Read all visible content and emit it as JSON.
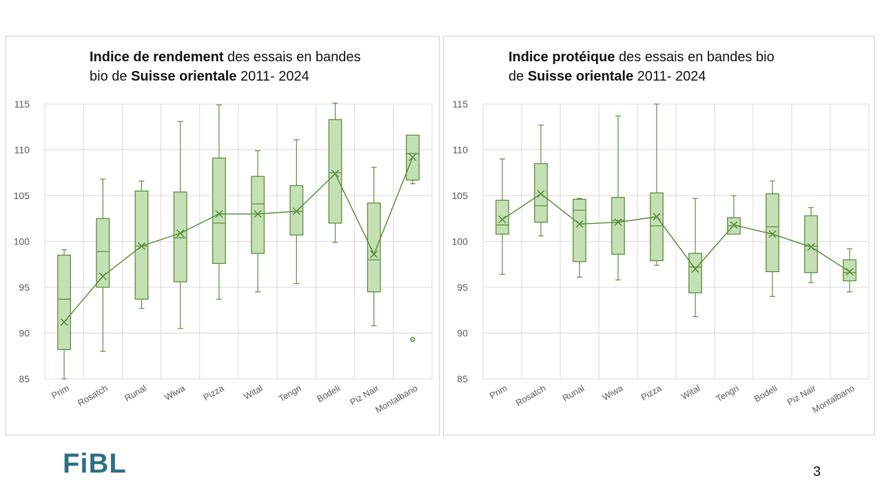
{
  "logo": "FiBL",
  "page_number": "3",
  "colors": {
    "box_fill": "#c5e0b4",
    "stroke": "#5b8d3c",
    "grid": "#d9d9d9",
    "logo": "#2e6f86"
  },
  "chart_data": [
    {
      "type": "box",
      "title_parts": [
        {
          "text": "Indice de rendement",
          "bold": true
        },
        {
          "text": " des essais en bandes",
          "bold": false
        },
        {
          "br": true
        },
        {
          "text": "bio de ",
          "bold": false
        },
        {
          "text": "Suisse orientale",
          "bold": true
        },
        {
          "text": " 2011- 2024",
          "bold": false
        }
      ],
      "ylim": [
        85,
        115
      ],
      "yticks": [
        85,
        90,
        95,
        100,
        105,
        110,
        115
      ],
      "grid": true,
      "categories": [
        "Prim",
        "Rosatch",
        "Runal",
        "Wiwa",
        "Pizza",
        "Wital",
        "Tengri",
        "Bodeli",
        "Piz Nair",
        "Montalbano"
      ],
      "boxes": [
        {
          "min": 85.0,
          "q1": 88.2,
          "median": 93.7,
          "q3": 98.5,
          "max": 99.1,
          "mean": 91.2,
          "outliers": []
        },
        {
          "min": 88.0,
          "q1": 95.0,
          "median": 98.9,
          "q3": 102.5,
          "max": 106.8,
          "mean": 96.2,
          "outliers": []
        },
        {
          "min": 92.7,
          "q1": 93.7,
          "median": 99.5,
          "q3": 105.5,
          "max": 106.6,
          "mean": 99.5,
          "outliers": []
        },
        {
          "min": 90.5,
          "q1": 95.6,
          "median": 100.4,
          "q3": 105.4,
          "max": 113.1,
          "mean": 100.9,
          "outliers": []
        },
        {
          "min": 93.7,
          "q1": 97.6,
          "median": 102.0,
          "q3": 109.1,
          "max": 114.9,
          "mean": 103.0,
          "outliers": []
        },
        {
          "min": 94.5,
          "q1": 98.7,
          "median": 104.1,
          "q3": 107.1,
          "max": 109.9,
          "mean": 103.0,
          "outliers": []
        },
        {
          "min": 95.4,
          "q1": 100.7,
          "median": 103.3,
          "q3": 106.1,
          "max": 111.1,
          "mean": 103.3,
          "outliers": []
        },
        {
          "min": 99.9,
          "q1": 102.0,
          "median": 107.5,
          "q3": 113.3,
          "max": 115.1,
          "mean": 107.4,
          "outliers": []
        },
        {
          "min": 90.8,
          "q1": 94.5,
          "median": 98.0,
          "q3": 104.2,
          "max": 108.1,
          "mean": 98.6,
          "outliers": []
        },
        {
          "min": 106.3,
          "q1": 106.7,
          "median": 109.6,
          "q3": 111.6,
          "max": 111.6,
          "mean": 109.2,
          "outliers": [
            89.3
          ]
        }
      ]
    },
    {
      "type": "box",
      "title_parts": [
        {
          "text": "Indice protéique",
          "bold": true
        },
        {
          "text": " des essais en bandes bio",
          "bold": false
        },
        {
          "br": true
        },
        {
          "text": "de ",
          "bold": false
        },
        {
          "text": "Suisse orientale",
          "bold": true
        },
        {
          "text": " 2011- 2024",
          "bold": false
        }
      ],
      "ylim": [
        85,
        115
      ],
      "yticks": [
        85,
        90,
        95,
        100,
        105,
        110,
        115
      ],
      "grid": true,
      "categories": [
        "Prim",
        "Rosatch",
        "Runal",
        "Wiwa",
        "Pizza",
        "Wital",
        "Tengri",
        "Bodeli",
        "Piz Nair",
        "Montalbano"
      ],
      "boxes": [
        {
          "min": 96.4,
          "q1": 100.8,
          "median": 101.8,
          "q3": 104.5,
          "max": 109.0,
          "mean": 102.4,
          "outliers": []
        },
        {
          "min": 100.6,
          "q1": 102.1,
          "median": 103.9,
          "q3": 108.5,
          "max": 112.7,
          "mean": 105.2,
          "outliers": []
        },
        {
          "min": 96.1,
          "q1": 97.8,
          "median": 103.4,
          "q3": 104.6,
          "max": 104.7,
          "mean": 101.9,
          "outliers": []
        },
        {
          "min": 95.8,
          "q1": 98.6,
          "median": 102.3,
          "q3": 104.8,
          "max": 113.7,
          "mean": 102.1,
          "outliers": []
        },
        {
          "min": 97.4,
          "q1": 97.9,
          "median": 101.7,
          "q3": 105.3,
          "max": 115.0,
          "mean": 102.7,
          "outliers": []
        },
        {
          "min": 91.8,
          "q1": 94.4,
          "median": 97.2,
          "q3": 98.7,
          "max": 104.7,
          "mean": 97.0,
          "outliers": []
        },
        {
          "min": 100.8,
          "q1": 100.8,
          "median": 101.7,
          "q3": 102.6,
          "max": 105.0,
          "mean": 101.8,
          "outliers": []
        },
        {
          "min": 94.0,
          "q1": 96.7,
          "median": 101.6,
          "q3": 105.2,
          "max": 106.6,
          "mean": 100.8,
          "outliers": []
        },
        {
          "min": 95.5,
          "q1": 96.6,
          "median": 99.5,
          "q3": 102.8,
          "max": 103.7,
          "mean": 99.4,
          "outliers": []
        },
        {
          "min": 94.5,
          "q1": 95.7,
          "median": 96.6,
          "q3": 98.0,
          "max": 99.2,
          "mean": 96.7,
          "outliers": []
        }
      ]
    }
  ]
}
